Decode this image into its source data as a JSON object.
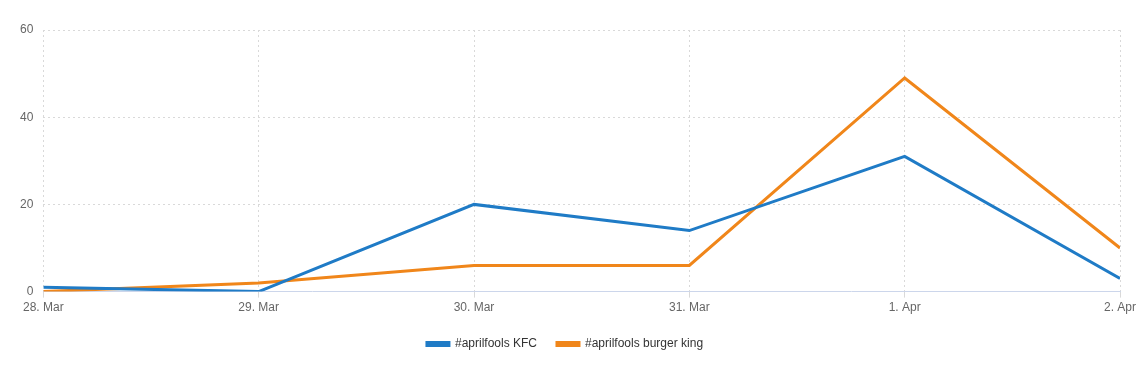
{
  "chart_data": {
    "type": "line",
    "categories": [
      "28. Mar",
      "29. Mar",
      "30. Mar",
      "31. Mar",
      "1. Apr",
      "2. Apr"
    ],
    "series": [
      {
        "name": "#aprilfools KFC",
        "color": "#1f7bc6",
        "values": [
          1,
          0,
          20,
          14,
          31,
          3
        ]
      },
      {
        "name": "#aprilfools burger king",
        "color": "#f0861a",
        "values": [
          0,
          2,
          6,
          6,
          49,
          10
        ]
      }
    ],
    "ylim": [
      0,
      60
    ],
    "yticks": [
      0,
      20,
      40,
      60
    ],
    "grid": true,
    "legend": "bottom"
  }
}
